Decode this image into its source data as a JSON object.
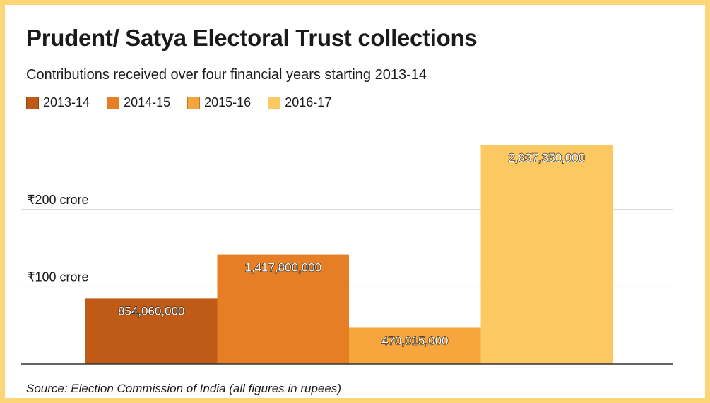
{
  "title": "Prudent/ Satya Electoral Trust collections",
  "subtitle": "Contributions received over four financial years starting 2013-14",
  "source": "Source: Election Commission of India (all figures in rupees)",
  "legend": [
    {
      "label": "2013-14",
      "color": "#bf5b17"
    },
    {
      "label": "2014-15",
      "color": "#e57e25"
    },
    {
      "label": "2015-16",
      "color": "#f6a63c"
    },
    {
      "label": "2016-17",
      "color": "#fbc862"
    }
  ],
  "chart_data": {
    "type": "bar",
    "title": "Prudent/ Satya Electoral Trust collections",
    "subtitle": "Contributions received over four financial years starting 2013-14",
    "categories": [
      "2013-14",
      "2014-15",
      "2015-16",
      "2016-17"
    ],
    "values": [
      854060000,
      1417800000,
      470015000,
      2837350000
    ],
    "data_labels": [
      "854,060,000",
      "1,417,800,000",
      "470,015,000",
      "2,837,350,000"
    ],
    "colors": [
      "#bf5b17",
      "#e57e25",
      "#f6a63c",
      "#fbc862"
    ],
    "yticks": [
      {
        "value": 1000000000,
        "label": "₹100 crore"
      },
      {
        "value": 2000000000,
        "label": "₹200 crore"
      }
    ],
    "ylim": [
      0,
      2837350000
    ],
    "grid": true,
    "legend_position": "top-left"
  }
}
